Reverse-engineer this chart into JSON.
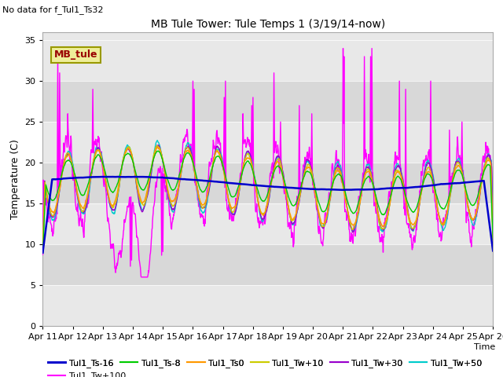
{
  "title": "MB Tule Tower: Tule Temps 1 (3/19/14-now)",
  "subtitle": "No data for f_Tul1_Ts32",
  "xlabel": "Time",
  "ylabel": "Temperature (C)",
  "ylim": [
    0,
    36
  ],
  "yticks": [
    0,
    5,
    10,
    15,
    20,
    25,
    30,
    35
  ],
  "xlim": [
    0,
    360
  ],
  "x_tick_labels": [
    "Apr 11",
    "Apr 12",
    "Apr 13",
    "Apr 14",
    "Apr 15",
    "Apr 16",
    "Apr 17",
    "Apr 18",
    "Apr 19",
    "Apr 20",
    "Apr 21",
    "Apr 22",
    "Apr 23",
    "Apr 24",
    "Apr 25",
    "Apr 26"
  ],
  "x_tick_positions": [
    0,
    24,
    48,
    72,
    96,
    120,
    144,
    168,
    192,
    216,
    240,
    264,
    288,
    312,
    336,
    360
  ],
  "series_colors": {
    "Tul1_Ts-16": "#0000cc",
    "Tul1_Ts-8": "#00cc00",
    "Tul1_Ts0": "#ff9900",
    "Tul1_Tw+10": "#cccc00",
    "Tul1_Tw+30": "#9900cc",
    "Tul1_Tw+50": "#00cccc",
    "Tul1_Tw+100": "#ff00ff"
  },
  "legend_box_facecolor": "#eeee99",
  "legend_box_edgecolor": "#999900",
  "legend_box_text": "MB_tule",
  "legend_box_text_color": "#990000",
  "band_colors": [
    "#e8e8e8",
    "#d8d8d8"
  ],
  "plot_bg": "#e8e8e8"
}
